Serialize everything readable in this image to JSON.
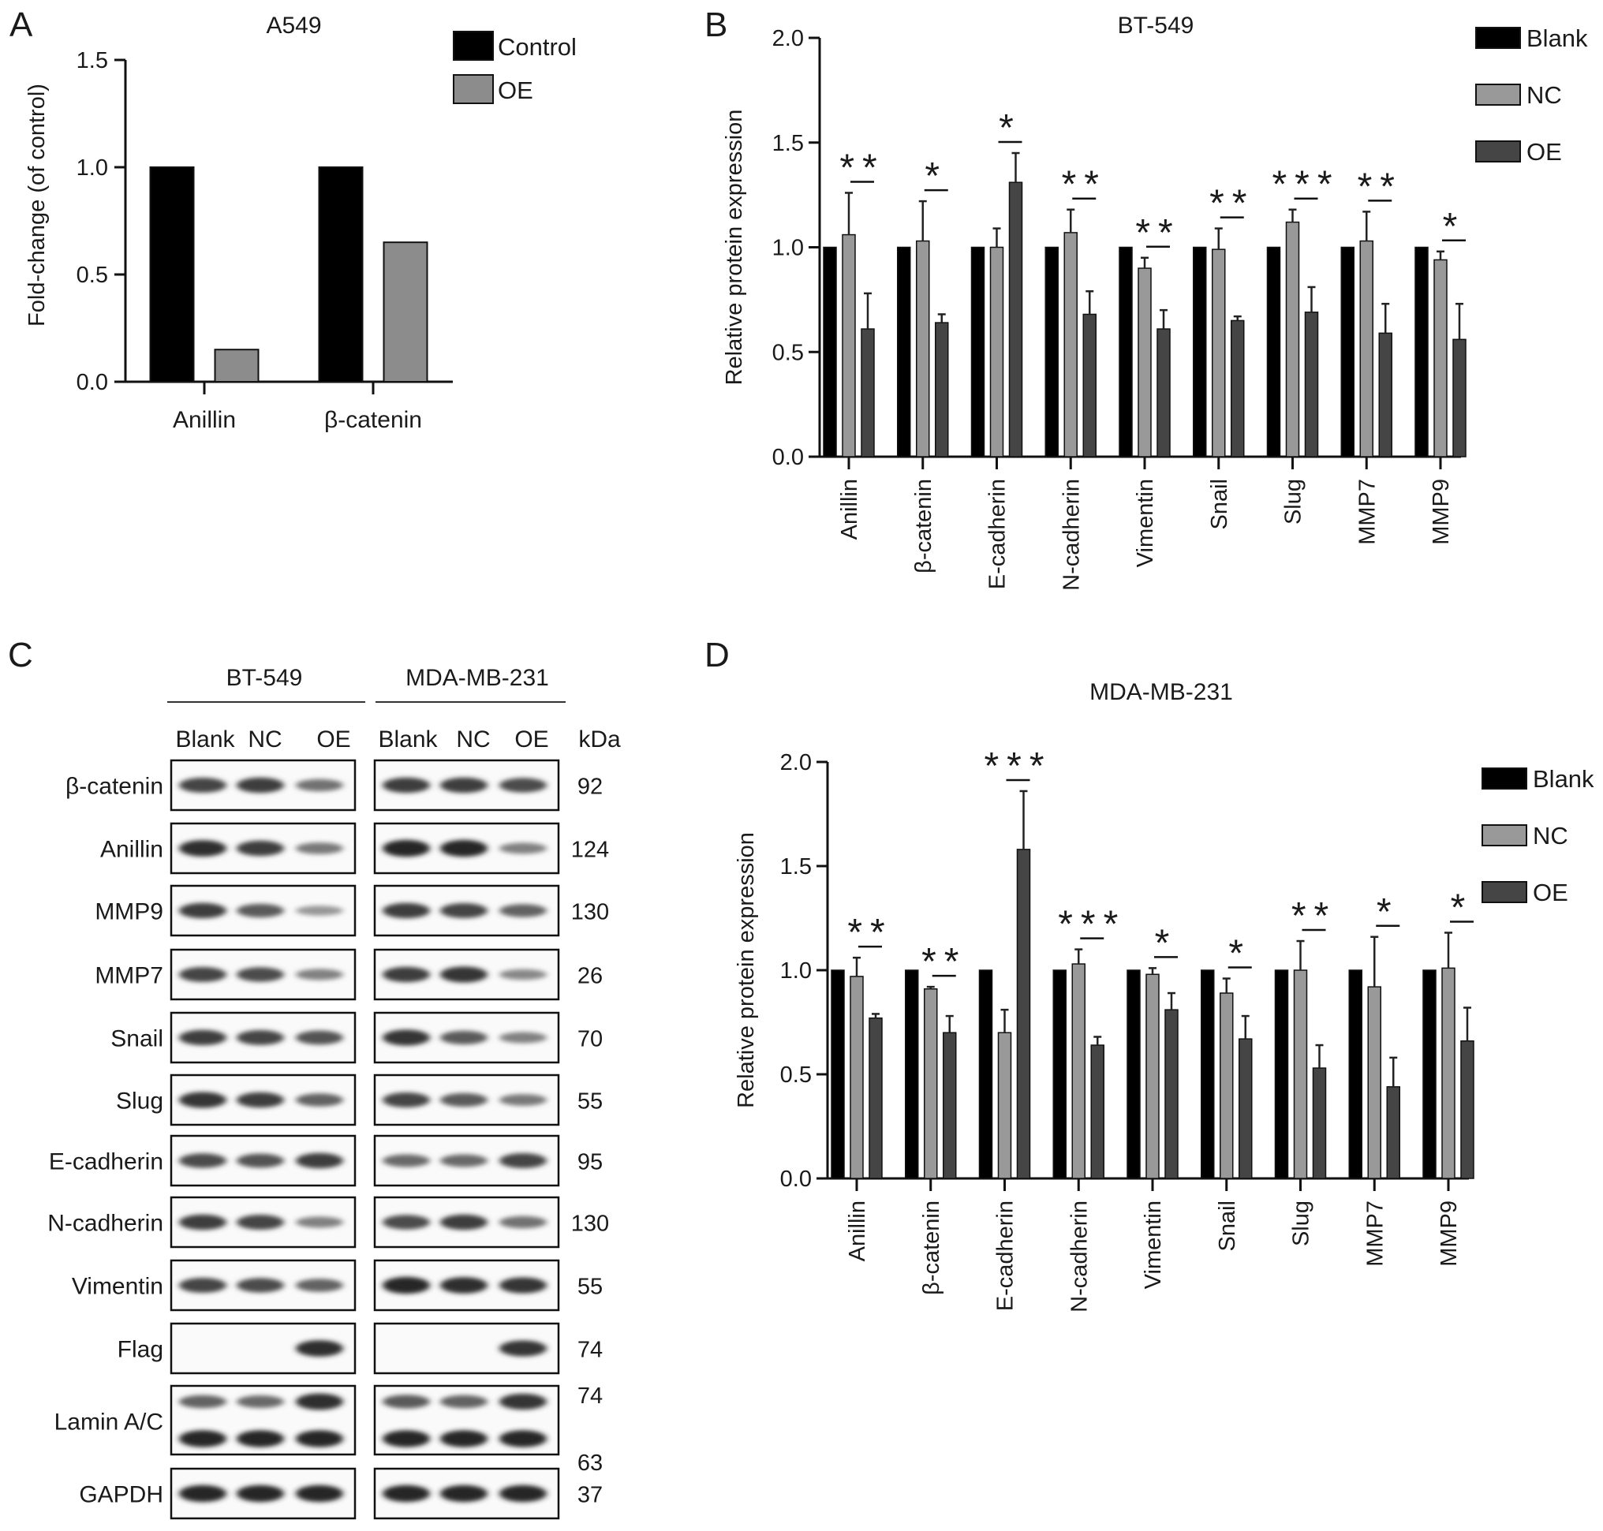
{
  "panel_labels": [
    "A",
    "B",
    "C",
    "D"
  ],
  "colors": {
    "control": "#000000",
    "oe_light": "#8c8c8c",
    "blank": "#000000",
    "nc": "#999999",
    "oe_dark": "#454545"
  },
  "chart_data": [
    {
      "panel": "A",
      "type": "bar",
      "title": "A549",
      "ylabel": "Fold-change (of control)",
      "ylim": [
        0,
        1.5
      ],
      "yticks": [
        "0.0",
        "0.5",
        "1.0",
        "1.5"
      ],
      "categories": [
        "Anillin",
        "β-catenin"
      ],
      "series": [
        {
          "name": "Control",
          "values": [
            1.0,
            1.0
          ]
        },
        {
          "name": "OE",
          "values": [
            0.15,
            0.65
          ]
        }
      ],
      "legend": "top-right"
    },
    {
      "panel": "B",
      "type": "bar",
      "title": "BT-549",
      "ylabel": "Relative protein expression",
      "ylim": [
        0,
        2.0
      ],
      "yticks": [
        "0.0",
        "0.5",
        "1.0",
        "1.5",
        "2.0"
      ],
      "categories": [
        "Anillin",
        "β-catenin",
        "E-cadherin",
        "N-cadherin",
        "Vimentin",
        "Snail",
        "Slug",
        "MMP7",
        "MMP9"
      ],
      "series": [
        {
          "name": "Blank",
          "values": [
            1.0,
            1.0,
            1.0,
            1.0,
            1.0,
            1.0,
            1.0,
            1.0,
            1.0
          ],
          "errors": [
            0,
            0,
            0,
            0,
            0,
            0,
            0,
            0,
            0
          ]
        },
        {
          "name": "NC",
          "values": [
            1.06,
            1.03,
            1.0,
            1.07,
            0.9,
            0.99,
            1.12,
            1.03,
            0.94
          ],
          "errors": [
            0.2,
            0.19,
            0.09,
            0.11,
            0.05,
            0.1,
            0.06,
            0.14,
            0.04
          ]
        },
        {
          "name": "OE",
          "values": [
            0.61,
            0.64,
            1.31,
            0.68,
            0.61,
            0.65,
            0.69,
            0.59,
            0.56
          ],
          "errors": [
            0.17,
            0.04,
            0.14,
            0.11,
            0.09,
            0.02,
            0.12,
            0.14,
            0.17
          ]
        }
      ],
      "significance": [
        "**",
        "*",
        "*",
        "**",
        "**",
        "**",
        "***",
        "**",
        "*"
      ],
      "legend": "top-right"
    },
    {
      "panel": "D",
      "type": "bar",
      "title": "MDA-MB-231",
      "ylabel": "Relative protein expression",
      "ylim": [
        0,
        2.0
      ],
      "yticks": [
        "0.0",
        "0.5",
        "1.0",
        "1.5",
        "2.0"
      ],
      "categories": [
        "Anillin",
        "β-catenin",
        "E-cadherin",
        "N-cadherin",
        "Vimentin",
        "Snail",
        "Slug",
        "MMP7",
        "MMP9"
      ],
      "series": [
        {
          "name": "Blank",
          "values": [
            1.0,
            1.0,
            1.0,
            1.0,
            1.0,
            1.0,
            1.0,
            1.0,
            1.0
          ],
          "errors": [
            0,
            0,
            0,
            0,
            0,
            0,
            0,
            0,
            0
          ]
        },
        {
          "name": "NC",
          "values": [
            0.97,
            0.91,
            0.7,
            1.03,
            0.98,
            0.89,
            1.0,
            0.92,
            1.01
          ],
          "errors": [
            0.09,
            0.01,
            0.11,
            0.07,
            0.03,
            0.07,
            0.14,
            0.24,
            0.17
          ]
        },
        {
          "name": "OE",
          "values": [
            0.77,
            0.7,
            1.58,
            0.64,
            0.81,
            0.67,
            0.53,
            0.44,
            0.66
          ],
          "errors": [
            0.02,
            0.08,
            0.28,
            0.04,
            0.08,
            0.11,
            0.11,
            0.14,
            0.16
          ]
        }
      ],
      "significance": [
        "**",
        "**",
        "***",
        "***",
        "*",
        "*",
        "**",
        "*",
        "*"
      ],
      "legend": "top-right"
    }
  ],
  "blot": {
    "panel": "C",
    "cell_lines": [
      "BT-549",
      "MDA-MB-231"
    ],
    "lanes": [
      "Blank",
      "NC",
      "OE"
    ],
    "kda_header": "kDa",
    "rows": [
      {
        "protein": "β-catenin",
        "kda": [
          "92"
        ],
        "bands": [
          [
            0.75,
            0.8,
            0.45
          ],
          [
            0.8,
            0.8,
            0.7
          ]
        ]
      },
      {
        "protein": "Anillin",
        "kda": [
          "124"
        ],
        "bands": [
          [
            0.9,
            0.8,
            0.4
          ],
          [
            0.95,
            0.95,
            0.35
          ]
        ]
      },
      {
        "protein": "MMP9",
        "kda": [
          "130"
        ],
        "bands": [
          [
            0.8,
            0.6,
            0.2
          ],
          [
            0.8,
            0.75,
            0.55
          ]
        ]
      },
      {
        "protein": "MMP7",
        "kda": [
          "26"
        ],
        "bands": [
          [
            0.75,
            0.7,
            0.35
          ],
          [
            0.8,
            0.85,
            0.3
          ]
        ]
      },
      {
        "protein": "Snail",
        "kda": [
          "70"
        ],
        "bands": [
          [
            0.8,
            0.75,
            0.65
          ],
          [
            0.85,
            0.6,
            0.35
          ]
        ]
      },
      {
        "protein": "Slug",
        "kda": [
          "55"
        ],
        "bands": [
          [
            0.85,
            0.8,
            0.55
          ],
          [
            0.75,
            0.6,
            0.4
          ]
        ]
      },
      {
        "protein": "E-cadherin",
        "kda": [
          "95"
        ],
        "bands": [
          [
            0.7,
            0.65,
            0.8
          ],
          [
            0.5,
            0.5,
            0.75
          ]
        ]
      },
      {
        "protein": "N-cadherin",
        "kda": [
          "130"
        ],
        "bands": [
          [
            0.8,
            0.75,
            0.35
          ],
          [
            0.7,
            0.8,
            0.45
          ]
        ]
      },
      {
        "protein": "Vimentin",
        "kda": [
          "55"
        ],
        "bands": [
          [
            0.75,
            0.7,
            0.55
          ],
          [
            0.95,
            0.9,
            0.85
          ]
        ]
      },
      {
        "protein": "Flag",
        "kda": [
          "74"
        ],
        "bands": [
          [
            0,
            0,
            0.9
          ],
          [
            0,
            0,
            0.85
          ]
        ]
      },
      {
        "protein": "Lamin A/C",
        "kda": [
          "74",
          "63"
        ],
        "bands": [
          [
            0.55,
            0.5,
            0.9
          ],
          [
            0.6,
            0.55,
            0.85
          ]
        ],
        "bands2": [
          [
            0.95,
            0.95,
            0.95
          ],
          [
            0.95,
            0.95,
            0.95
          ]
        ]
      },
      {
        "protein": "GAPDH",
        "kda": [
          "37"
        ],
        "bands": [
          [
            0.95,
            0.95,
            0.95
          ],
          [
            0.95,
            0.95,
            0.95
          ]
        ]
      }
    ]
  }
}
